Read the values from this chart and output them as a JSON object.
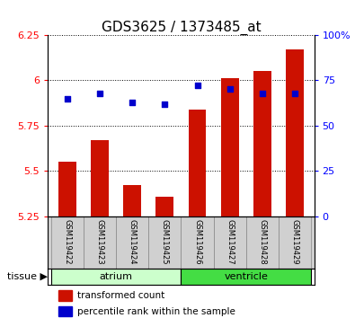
{
  "title": "GDS3625 / 1373485_at",
  "samples": [
    "GSM119422",
    "GSM119423",
    "GSM119424",
    "GSM119425",
    "GSM119426",
    "GSM119427",
    "GSM119428",
    "GSM119429"
  ],
  "transformed_count": [
    5.55,
    5.67,
    5.42,
    5.36,
    5.84,
    6.01,
    6.05,
    6.17
  ],
  "percentile_rank": [
    65,
    68,
    63,
    62,
    72,
    70,
    68,
    68
  ],
  "bar_bottom": 5.25,
  "left_ylim": [
    5.25,
    6.25
  ],
  "right_ylim": [
    0,
    100
  ],
  "left_yticks": [
    5.25,
    5.5,
    5.75,
    6.0,
    6.25
  ],
  "right_yticks": [
    0,
    25,
    50,
    75,
    100
  ],
  "left_ytick_labels": [
    "5.25",
    "5.5",
    "5.75",
    "6",
    "6.25"
  ],
  "right_ytick_labels": [
    "0",
    "25",
    "50",
    "75",
    "100%"
  ],
  "bar_color": "#cc1100",
  "dot_color": "#0000cc",
  "tissue_groups": [
    {
      "label": "atrium",
      "start": 0,
      "end": 4,
      "color": "#ccffcc"
    },
    {
      "label": "ventricle",
      "start": 4,
      "end": 8,
      "color": "#44dd44"
    }
  ],
  "tissue_label": "tissue",
  "legend_items": [
    {
      "label": "transformed count",
      "color": "#cc1100"
    },
    {
      "label": "percentile rank within the sample",
      "color": "#0000cc"
    }
  ],
  "background_color": "#ffffff",
  "plot_bg": "#ffffff",
  "title_fontsize": 11
}
